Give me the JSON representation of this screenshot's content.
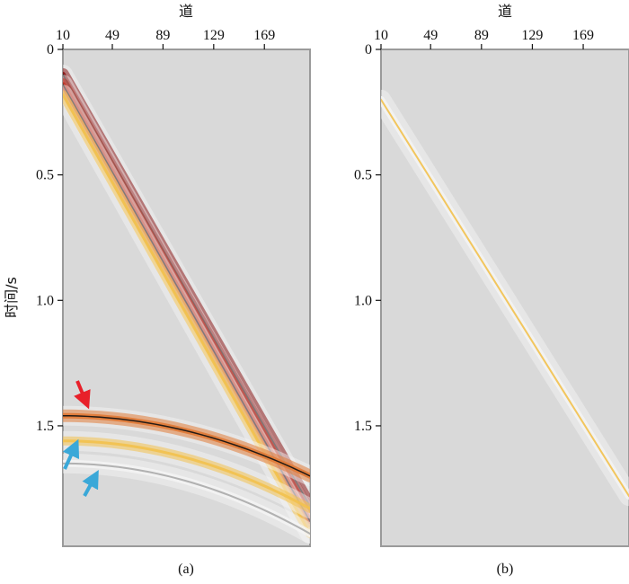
{
  "chart_data": [
    {
      "type": "heatmap",
      "panel_label": "(a)",
      "xlabel": "道",
      "ylabel": "时间/s",
      "x_ticks": [
        "10",
        "49",
        "89",
        "129",
        "169"
      ],
      "x_tick_values": [
        10,
        49,
        89,
        129,
        169
      ],
      "y_ticks": [
        "0",
        "0.5",
        "1.0",
        "1.5"
      ],
      "y_tick_values": [
        0,
        0.5,
        1.0,
        1.5
      ],
      "xlim": [
        10,
        205
      ],
      "ylim": [
        0,
        1.98
      ],
      "background": "#d9d9d9",
      "events": [
        {
          "kind": "linear",
          "x": [
            10,
            205
          ],
          "t": [
            0.1,
            1.82
          ],
          "color": "#8b1a1a",
          "weight": "strong"
        },
        {
          "kind": "linear",
          "x": [
            10,
            205
          ],
          "t": [
            0.14,
            1.88
          ],
          "color": "#c0392b",
          "weight": "strong"
        },
        {
          "kind": "linear",
          "x": [
            10,
            205
          ],
          "t": [
            0.18,
            1.93
          ],
          "color": "#f2c14e",
          "weight": "medium"
        },
        {
          "kind": "hyperbolic",
          "t0": 1.46,
          "x0": 10,
          "x_end": 205,
          "t_end": 1.7,
          "color": "#e07b39",
          "weight": "strong"
        },
        {
          "kind": "hyperbolic",
          "t0": 1.56,
          "x0": 10,
          "x_end": 205,
          "t_end": 1.83,
          "color": "#f2c14e",
          "weight": "medium"
        },
        {
          "kind": "hyperbolic",
          "t0": 1.65,
          "x0": 10,
          "x_end": 205,
          "t_end": 1.93,
          "color": "#aaaaaa",
          "weight": "weak"
        }
      ],
      "annotations": [
        {
          "type": "arrow",
          "color": "#e8202a",
          "points_to": "first hyperbolic event (t≈1.46 s)"
        },
        {
          "type": "arrow",
          "color": "#3aa8d8",
          "points_to": "second hyperbolic event (t≈1.56 s)"
        },
        {
          "type": "arrow",
          "color": "#3aa8d8",
          "points_to": "third hyperbolic event (t≈1.65 s)"
        }
      ]
    },
    {
      "type": "heatmap",
      "panel_label": "(b)",
      "xlabel": "道",
      "ylabel": "",
      "x_ticks": [
        "10",
        "49",
        "89",
        "129",
        "169"
      ],
      "x_tick_values": [
        10,
        49,
        89,
        129,
        169
      ],
      "y_ticks": [
        "0",
        "0.5",
        "1.0",
        "1.5"
      ],
      "y_tick_values": [
        0,
        0.5,
        1.0,
        1.5
      ],
      "xlim": [
        10,
        205
      ],
      "ylim": [
        0,
        1.98
      ],
      "background": "#d9d9d9",
      "events": [
        {
          "kind": "linear",
          "x": [
            10,
            205
          ],
          "t": [
            0.2,
            1.78
          ],
          "color": "#f2c14e",
          "weight": "weak"
        }
      ]
    }
  ]
}
